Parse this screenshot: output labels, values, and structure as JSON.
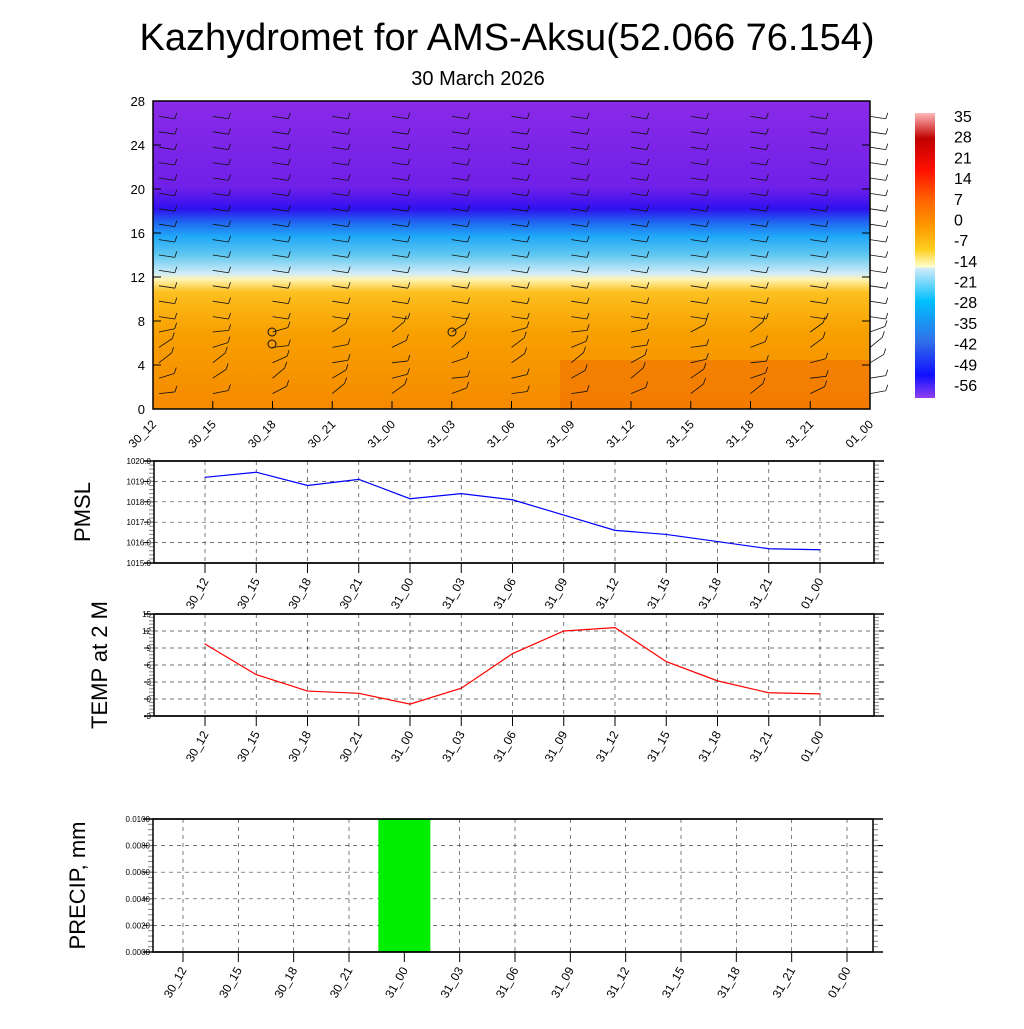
{
  "title": "Kazhydromet for AMS-Aksu(52.066 76.154)",
  "subtitle": "30 March 2026",
  "chart_data": [
    {
      "type": "heatmap",
      "name": "temperature-profile",
      "y_ticks": [
        "0",
        "4",
        "8",
        "12",
        "16",
        "20",
        "24",
        "28"
      ],
      "ylim": [
        0,
        28
      ],
      "x_ticks": [
        "30_12",
        "30_15",
        "30_18",
        "30_21",
        "31_00",
        "31_03",
        "31_06",
        "31_09",
        "31_12",
        "31_15",
        "31_18",
        "31_21",
        "01_00"
      ],
      "colorbar_labels": [
        "35",
        "28",
        "21",
        "14",
        "7",
        "0",
        "-7",
        "-14",
        "-21",
        "-28",
        "-35",
        "-42",
        "-49",
        "-56"
      ],
      "note_wind_barbs": true
    },
    {
      "type": "line",
      "ylabel": "PMSL",
      "color": "#0000ff",
      "x": [
        "30_12",
        "30_15",
        "30_18",
        "30_21",
        "31_00",
        "31_03",
        "31_06",
        "31_09",
        "31_12",
        "31_15",
        "31_18",
        "31_21",
        "01_00"
      ],
      "values": [
        1019.2,
        1019.45,
        1018.8,
        1019.1,
        1018.15,
        1018.4,
        1018.1,
        1017.35,
        1016.6,
        1016.4,
        1016.05,
        1015.7,
        1015.65
      ],
      "ylim": [
        1015.0,
        1020.0
      ],
      "y_ticks": [
        "1015.0",
        "1016.0",
        "1017.0",
        "1018.0",
        "1019.0",
        "1020.0"
      ]
    },
    {
      "type": "line",
      "ylabel": "TEMP at 2 M",
      "color": "#ff0000",
      "x": [
        "30_12",
        "30_15",
        "30_18",
        "30_21",
        "31_00",
        "31_03",
        "31_06",
        "31_09",
        "31_12",
        "31_15",
        "31_18",
        "31_21",
        "01_00"
      ],
      "values": [
        9.7,
        4.3,
        1.4,
        1.0,
        -0.9,
        1.9,
        8.0,
        12.0,
        12.6,
        6.6,
        3.2,
        1.1,
        0.9
      ],
      "ylim": [
        -3,
        15
      ],
      "y_ticks": [
        "-3",
        "0",
        "3",
        "6",
        "9",
        "12",
        "15"
      ]
    },
    {
      "type": "bar",
      "ylabel": "PRECIP, mm",
      "color": "#00ee00",
      "x": [
        "30_12",
        "30_15",
        "30_18",
        "30_21",
        "31_00",
        "31_03",
        "31_06",
        "31_09",
        "31_12",
        "31_15",
        "31_18",
        "31_21",
        "01_00"
      ],
      "values": [
        0,
        0,
        0,
        0,
        0.01,
        0,
        0,
        0,
        0,
        0,
        0,
        0,
        0
      ],
      "ylim": [
        0,
        0.01
      ],
      "y_ticks": [
        "0.0000",
        "0.0020",
        "0.0040",
        "0.0060",
        "0.0080",
        "0.0100"
      ]
    }
  ]
}
